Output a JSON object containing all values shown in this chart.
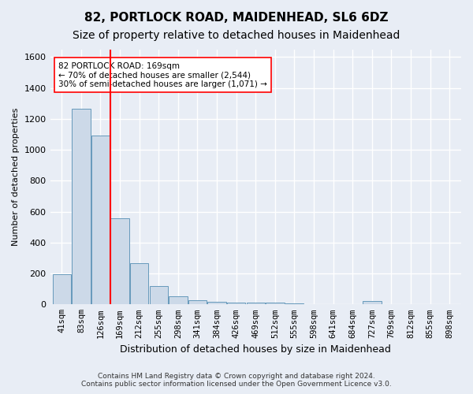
{
  "title": "82, PORTLOCK ROAD, MAIDENHEAD, SL6 6DZ",
  "subtitle": "Size of property relative to detached houses in Maidenhead",
  "xlabel": "Distribution of detached houses by size in Maidenhead",
  "ylabel": "Number of detached properties",
  "footer_line1": "Contains HM Land Registry data © Crown copyright and database right 2024.",
  "footer_line2": "Contains public sector information licensed under the Open Government Licence v3.0.",
  "bins": [
    "41sqm",
    "83sqm",
    "126sqm",
    "169sqm",
    "212sqm",
    "255sqm",
    "298sqm",
    "341sqm",
    "384sqm",
    "426sqm",
    "469sqm",
    "512sqm",
    "555sqm",
    "598sqm",
    "641sqm",
    "684sqm",
    "727sqm",
    "769sqm",
    "812sqm",
    "855sqm",
    "898sqm"
  ],
  "values": [
    195,
    1265,
    1090,
    555,
    265,
    120,
    55,
    28,
    18,
    10,
    10,
    10,
    5,
    0,
    0,
    0,
    22,
    0,
    0,
    0,
    0
  ],
  "bar_color": "#ccd9e8",
  "bar_edge_color": "#6699bb",
  "vline_x_index": 3,
  "vline_color": "red",
  "annotation_text": "82 PORTLOCK ROAD: 169sqm\n← 70% of detached houses are smaller (2,544)\n30% of semi-detached houses are larger (1,071) →",
  "annotation_box_color": "white",
  "annotation_box_edge": "red",
  "ylim": [
    0,
    1650
  ],
  "yticks": [
    0,
    200,
    400,
    600,
    800,
    1000,
    1200,
    1400,
    1600
  ],
  "bg_color": "#e8edf5",
  "plot_bg_color": "#e8edf5",
  "grid_color": "white",
  "title_fontsize": 11,
  "subtitle_fontsize": 10
}
